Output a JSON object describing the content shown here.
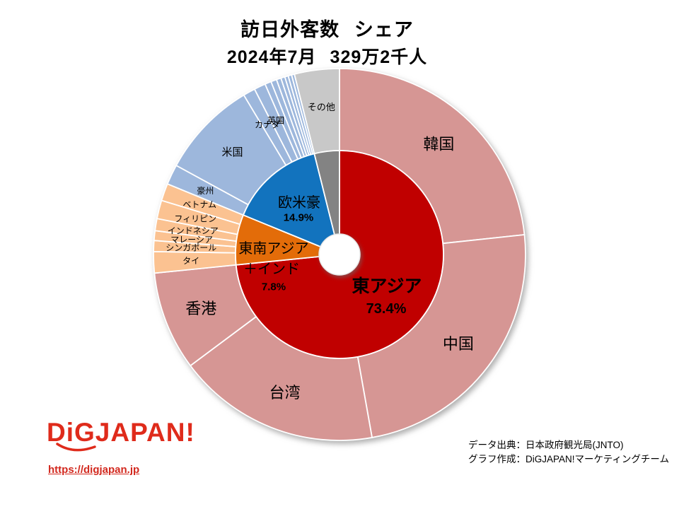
{
  "chart_data": {
    "type": "pie",
    "variant": "two-ring-donut",
    "title": "訪日外客数 シェア",
    "subtitle": "2024年7月 329万2千人",
    "inner_ring": [
      {
        "label": "東アジア",
        "value": 73.4,
        "value_label": "73.4%",
        "color": "#C00000"
      },
      {
        "label": "東南アジア＋インド",
        "label_lines": [
          "東南アジア",
          "＋インド"
        ],
        "value": 7.8,
        "value_label": "7.8%",
        "color": "#E36C09"
      },
      {
        "label": "欧米豪",
        "value": 14.9,
        "value_label": "14.9%",
        "color": "#1273BE"
      },
      {
        "label": "",
        "value": 3.9,
        "color": "#838383"
      }
    ],
    "outer_ring": [
      {
        "label": "韓国",
        "value": 23.3,
        "color": "#D69694"
      },
      {
        "label": "中国",
        "value": 23.9,
        "color": "#D69694"
      },
      {
        "label": "台湾",
        "value": 17.6,
        "color": "#D69694"
      },
      {
        "label": "香港",
        "value": 8.6,
        "color": "#D69694"
      },
      {
        "label": "タイ",
        "value": 1.85,
        "color": "#FBC291"
      },
      {
        "label": "シンガポール",
        "value": 0.95,
        "color": "#FBC291"
      },
      {
        "label": "マレーシア",
        "value": 0.85,
        "color": "#FBC291"
      },
      {
        "label": "インドネシア",
        "value": 1.05,
        "color": "#FBC291"
      },
      {
        "label": "フィリピン",
        "value": 1.6,
        "color": "#FBC291"
      },
      {
        "label": "ベトナム",
        "value": 1.5,
        "color": "#FBC291"
      },
      {
        "label": "豪州",
        "value": 1.75,
        "color": "#9DB7DC"
      },
      {
        "label": "米国",
        "value": 8.45,
        "color": "#9DB7DC"
      },
      {
        "label": "カナダ",
        "value": 1.05,
        "color": "#9DB7DC"
      },
      {
        "label": "英国",
        "value": 1.0,
        "color": "#9DB7DC"
      },
      {
        "label": "",
        "value": 0.55,
        "color": "#9DB7DC"
      },
      {
        "label": "",
        "value": 0.5,
        "color": "#9DB7DC"
      },
      {
        "label": "",
        "value": 0.4,
        "color": "#9DB7DC"
      },
      {
        "label": "",
        "value": 0.35,
        "color": "#9DB7DC"
      },
      {
        "label": "",
        "value": 0.3,
        "color": "#9DB7DC"
      },
      {
        "label": "",
        "value": 0.3,
        "color": "#9DB7DC"
      },
      {
        "label": "",
        "value": 0.25,
        "color": "#9DB7DC"
      },
      {
        "label": "その他",
        "value": 3.9,
        "color": "#C8C8C8"
      }
    ],
    "legend_position": "none",
    "accent_colors": {
      "east_asia": "#C00000",
      "southeast_asia_india": "#E36C09",
      "west": "#1273BE",
      "other_inner": "#838383",
      "east_asia_outer": "#D69694",
      "southeast_asia_outer": "#FBC291",
      "west_outer": "#9DB7DC",
      "other_outer": "#C8C8C8"
    }
  },
  "logo": {
    "text": "DiGJAPAN!",
    "url": "https://digjapan.jp",
    "color": "#DF2B1B"
  },
  "source": {
    "line1": "データ出典：日本政府観光局(JNTO)",
    "line2": "グラフ作成：DiGJAPAN!マーケティングチーム"
  }
}
